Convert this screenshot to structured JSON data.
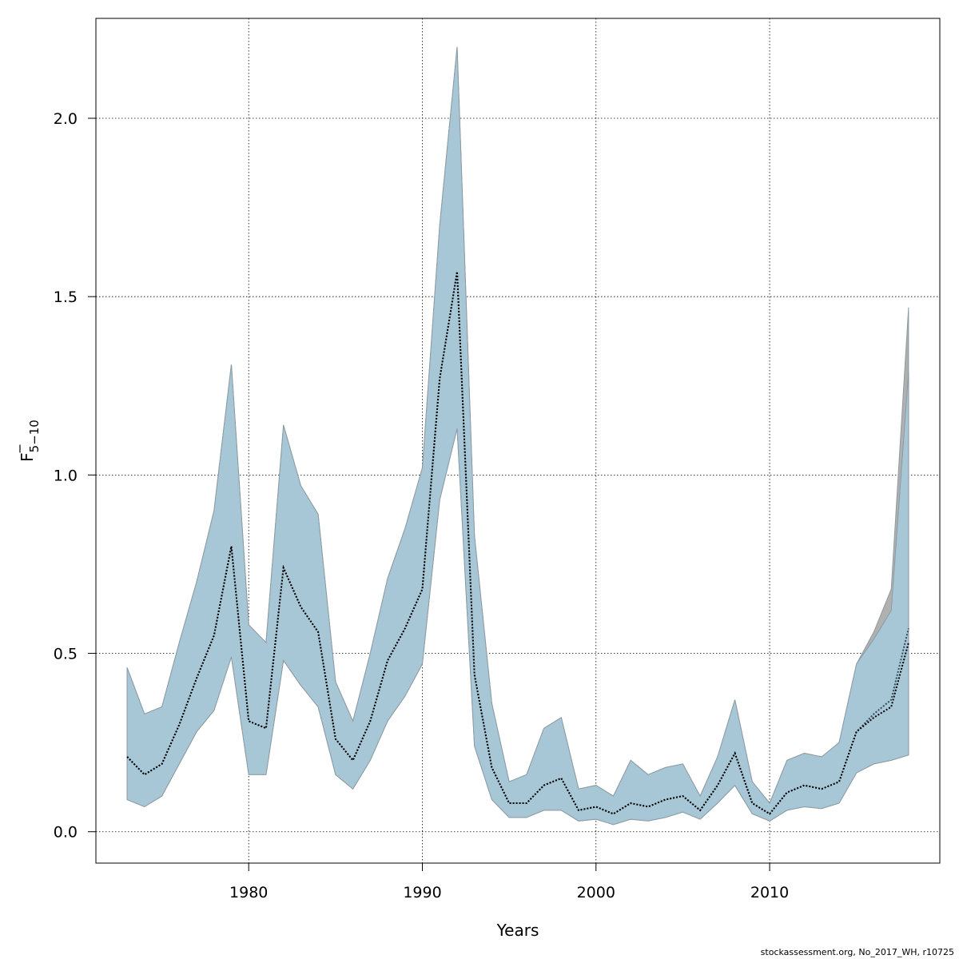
{
  "chart_data": {
    "type": "area",
    "xlabel": "Years",
    "ylabel": {
      "base": "F",
      "subscript": "5−10"
    },
    "xlim": [
      1971.2,
      2019.8
    ],
    "ylim": [
      -0.088,
      2.28
    ],
    "x_ticks": [
      "1980",
      "1990",
      "2000",
      "2010"
    ],
    "y_ticks": [
      "0.0",
      "0.5",
      "1.0",
      "1.5",
      "2.0"
    ],
    "grid": "dotted",
    "x": [
      1973,
      1974,
      1975,
      1976,
      1977,
      1978,
      1979,
      1980,
      1981,
      1982,
      1983,
      1984,
      1985,
      1986,
      1987,
      1988,
      1989,
      1990,
      1991,
      1992,
      1993,
      1994,
      1995,
      1996,
      1997,
      1998,
      1999,
      2000,
      2001,
      2002,
      2003,
      2004,
      2005,
      2006,
      2007,
      2008,
      2009,
      2010,
      2011,
      2012,
      2013,
      2014,
      2015,
      2016,
      2017,
      2018
    ],
    "series": [
      {
        "role": "estimate",
        "style": "dotted",
        "values": [
          0.21,
          0.16,
          0.19,
          0.3,
          0.43,
          0.55,
          0.8,
          0.31,
          0.29,
          0.74,
          0.63,
          0.56,
          0.26,
          0.2,
          0.31,
          0.48,
          0.57,
          0.68,
          1.27,
          1.57,
          0.44,
          0.18,
          0.08,
          0.08,
          0.13,
          0.15,
          0.06,
          0.07,
          0.05,
          0.08,
          0.07,
          0.09,
          0.1,
          0.06,
          0.13,
          0.22,
          0.08,
          0.05,
          0.11,
          0.13,
          0.12,
          0.14,
          0.28,
          0.32,
          0.35,
          0.53
        ]
      },
      {
        "role": "estimate-alt",
        "style": "dotted",
        "values": [
          0.21,
          0.16,
          0.19,
          0.3,
          0.43,
          0.55,
          0.8,
          0.31,
          0.29,
          0.74,
          0.63,
          0.56,
          0.26,
          0.2,
          0.31,
          0.48,
          0.57,
          0.68,
          1.27,
          1.57,
          0.44,
          0.18,
          0.08,
          0.08,
          0.13,
          0.15,
          0.06,
          0.07,
          0.05,
          0.08,
          0.07,
          0.09,
          0.1,
          0.06,
          0.13,
          0.22,
          0.08,
          0.05,
          0.11,
          0.13,
          0.12,
          0.14,
          0.28,
          0.33,
          0.37,
          0.57
        ]
      },
      {
        "role": "ci-lower",
        "values": [
          0.09,
          0.07,
          0.1,
          0.19,
          0.28,
          0.34,
          0.49,
          0.16,
          0.16,
          0.48,
          0.41,
          0.35,
          0.16,
          0.12,
          0.2,
          0.31,
          0.38,
          0.47,
          0.93,
          1.13,
          0.24,
          0.09,
          0.04,
          0.04,
          0.06,
          0.06,
          0.03,
          0.035,
          0.02,
          0.035,
          0.03,
          0.04,
          0.055,
          0.035,
          0.08,
          0.13,
          0.05,
          0.03,
          0.06,
          0.07,
          0.065,
          0.08,
          0.165,
          0.19,
          0.2,
          0.215
        ]
      },
      {
        "role": "ci-upper",
        "values": [
          0.46,
          0.33,
          0.35,
          0.53,
          0.7,
          0.9,
          1.31,
          0.58,
          0.53,
          1.14,
          0.97,
          0.89,
          0.42,
          0.31,
          0.5,
          0.71,
          0.85,
          1.02,
          1.7,
          2.2,
          0.83,
          0.36,
          0.14,
          0.16,
          0.29,
          0.32,
          0.12,
          0.13,
          0.1,
          0.2,
          0.16,
          0.18,
          0.19,
          0.1,
          0.21,
          0.37,
          0.14,
          0.08,
          0.2,
          0.22,
          0.21,
          0.25,
          0.47,
          0.54,
          0.62,
          1.29
        ]
      },
      {
        "role": "ci-upper-alt",
        "values": [
          0.46,
          0.33,
          0.35,
          0.53,
          0.7,
          0.9,
          1.31,
          0.58,
          0.53,
          1.14,
          0.97,
          0.89,
          0.42,
          0.31,
          0.5,
          0.71,
          0.85,
          1.02,
          1.7,
          2.2,
          0.83,
          0.36,
          0.14,
          0.16,
          0.29,
          0.32,
          0.12,
          0.13,
          0.1,
          0.2,
          0.16,
          0.18,
          0.19,
          0.1,
          0.21,
          0.37,
          0.14,
          0.08,
          0.2,
          0.22,
          0.21,
          0.25,
          0.47,
          0.56,
          0.68,
          1.47
        ]
      }
    ],
    "colors": {
      "ci_band": "#a7c6d6",
      "ci_band_alt": "#b0b0b0",
      "ci_border": "#8c9ba3",
      "line": "#000000"
    }
  },
  "footer": {
    "credit": "stockassessment.org, No_2017_WH, r10725"
  }
}
